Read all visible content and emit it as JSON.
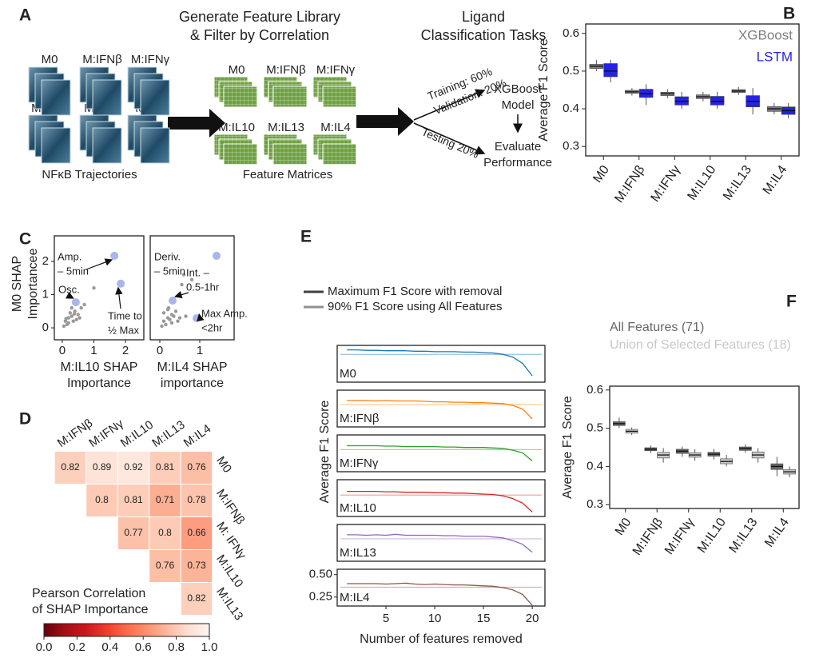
{
  "panel_labels": [
    "A",
    "B",
    "C",
    "D",
    "E",
    "F"
  ],
  "diagram": {
    "title": [
      "Generate Feature Library",
      "& Filter by Correlation"
    ],
    "trajectory_labels": [
      "M0",
      "M:IFNβ",
      "M:IFNγ",
      "M:IL10",
      "M:IL13",
      "M:IL4"
    ],
    "trajectory_caption": "NFκB Trajectories",
    "matrix_labels": [
      "M0",
      "M:IFNβ",
      "M:IFNγ",
      "M:IL10",
      "M:IL13",
      "M:IL4"
    ],
    "matrix_caption": "Feature Matrices",
    "task_title": [
      "Ligand",
      "Classification Tasks"
    ],
    "split_labels": [
      "Training: 60%",
      "Validation: 20%",
      "Testing 20%"
    ],
    "model": [
      "XGBoost",
      "Model"
    ],
    "evaluate": [
      "Evaluate",
      "Performance"
    ]
  },
  "chart_data": [
    {
      "type": "box",
      "ylabel": "Average F1 Score",
      "categories": [
        "M0",
        "M:IFNβ",
        "M:IFNγ",
        "M:IL10",
        "M:IL13",
        "M:IL4"
      ],
      "ylim": [
        0.275,
        0.625
      ],
      "yticks": [
        0.3,
        0.4,
        0.5,
        0.6
      ],
      "legend": "upper right",
      "series": [
        {
          "name": "XGBoost",
          "color": "#7f7f7f",
          "values": [
            {
              "min": 0.5,
              "q1": 0.507,
              "median": 0.513,
              "q3": 0.518,
              "max": 0.53
            },
            {
              "min": 0.435,
              "q1": 0.441,
              "median": 0.445,
              "q3": 0.449,
              "max": 0.455
            },
            {
              "min": 0.428,
              "q1": 0.435,
              "median": 0.44,
              "q3": 0.444,
              "max": 0.452
            },
            {
              "min": 0.42,
              "q1": 0.427,
              "median": 0.432,
              "q3": 0.437,
              "max": 0.445
            },
            {
              "min": 0.437,
              "q1": 0.443,
              "median": 0.447,
              "q3": 0.451,
              "max": 0.458
            },
            {
              "min": 0.385,
              "q1": 0.393,
              "median": 0.4,
              "q3": 0.406,
              "max": 0.415
            }
          ]
        },
        {
          "name": "LSTM",
          "color": "#2323e0",
          "values": [
            {
              "min": 0.47,
              "q1": 0.485,
              "median": 0.5,
              "q3": 0.52,
              "max": 0.53
            },
            {
              "min": 0.41,
              "q1": 0.43,
              "median": 0.44,
              "q3": 0.452,
              "max": 0.465
            },
            {
              "min": 0.4,
              "q1": 0.41,
              "median": 0.42,
              "q3": 0.432,
              "max": 0.445
            },
            {
              "min": 0.4,
              "q1": 0.41,
              "median": 0.42,
              "q3": 0.433,
              "max": 0.445
            },
            {
              "min": 0.385,
              "q1": 0.405,
              "median": 0.42,
              "q3": 0.435,
              "max": 0.455
            },
            {
              "min": 0.375,
              "q1": 0.385,
              "median": 0.395,
              "q3": 0.405,
              "max": 0.415
            }
          ]
        }
      ]
    },
    {
      "type": "scatter",
      "ylabel": [
        "M0 SHAP",
        "Importancee"
      ],
      "xlabel": [
        "M:IL10 SHAP",
        "Importance"
      ],
      "xlim": [
        -0.25,
        2.58
      ],
      "ylim": [
        -0.36,
        2.77
      ],
      "xticks": [
        0,
        1,
        2
      ],
      "yticks": [
        0,
        1,
        2
      ],
      "color": "#999999",
      "x": [
        0.1,
        0.2,
        0.3,
        0.15,
        0.4,
        0.25,
        0.5,
        0.35,
        0.05,
        0.6,
        0.45,
        0.2,
        1.0,
        0.7,
        0.55,
        0.3,
        0.12,
        0.38
      ],
      "y": [
        0.2,
        0.3,
        0.35,
        0.1,
        0.5,
        0.45,
        0.4,
        0.2,
        0.05,
        0.6,
        0.25,
        0.15,
        1.2,
        0.7,
        0.3,
        0.6,
        0.28,
        0.42
      ],
      "highlight": {
        "color": "#aab6ea",
        "x": [
          1.65,
          0.43,
          1.85
        ],
        "y": [
          2.17,
          0.77,
          1.33
        ],
        "annotations": [
          [
            "Amp.",
            "– 5min"
          ],
          [
            "Osc."
          ],
          [
            "Time to",
            "½ Max"
          ]
        ]
      }
    },
    {
      "type": "scatter",
      "xlabel": [
        "M:IL4 SHAP",
        "importance"
      ],
      "xlim": [
        -0.24,
        1.86
      ],
      "ylim": [
        -0.36,
        2.77
      ],
      "xticks": [
        0,
        1
      ],
      "color": "#999999",
      "x": [
        0.1,
        0.2,
        0.15,
        0.3,
        0.25,
        0.4,
        0.05,
        0.35,
        0.5,
        0.2,
        0.45,
        0.3,
        0.6,
        0.1,
        0.55,
        0.8,
        0.22,
        0.65
      ],
      "y": [
        0.2,
        0.3,
        0.1,
        0.4,
        0.25,
        0.5,
        0.05,
        0.35,
        0.3,
        0.55,
        0.2,
        0.15,
        1.6,
        0.45,
        1.3,
        1.45,
        0.6,
        0.35
      ],
      "highlight": {
        "color": "#aab6ea",
        "x": [
          1.42,
          0.32,
          0.92
        ],
        "y": [
          2.17,
          0.82,
          0.29
        ],
        "annotations": [
          [
            "Deriv.",
            "– 5min"
          ],
          [
            "Int. –",
            "0.5-1hr"
          ],
          [
            "Max Amp.",
            "<2hr"
          ]
        ]
      }
    },
    {
      "type": "heatmap",
      "columns": [
        "M:IFNβ",
        "M:IFNγ",
        "M:IL10",
        "M:IL13",
        "M:IL4"
      ],
      "rows": [
        "M0",
        "M:IFNβ",
        "M: IFNγ",
        "M:IL10",
        "M:IL13"
      ],
      "values": [
        [
          0.82,
          0.89,
          0.92,
          0.81,
          0.76
        ],
        [
          null,
          0.8,
          0.81,
          0.71,
          0.78
        ],
        [
          null,
          null,
          0.77,
          0.8,
          0.66
        ],
        [
          null,
          null,
          null,
          0.76,
          0.73
        ],
        [
          null,
          null,
          null,
          null,
          0.82
        ]
      ],
      "colormap": "Reds_r",
      "clim": [
        0,
        1
      ],
      "colorbar_label": [
        "Pearson Correlation",
        "of SHAP Importance"
      ],
      "colorbar_ticks": [
        {
          "value": 0,
          "label": "0.0"
        },
        0.2,
        0.4,
        0.6,
        0.8,
        {
          "value": 1,
          "label": "1.0"
        }
      ]
    },
    {
      "type": "line_panels",
      "ylabel": "Average F1 Score",
      "xlabel": "Number of features removed",
      "legend_entries": [
        {
          "name": "Maximum F1 Score with removal",
          "color": "#404040"
        },
        {
          "name": "90% F1 Score using All Features",
          "color": "#909090"
        }
      ],
      "x": [
        1,
        2,
        3,
        4,
        5,
        6,
        7,
        8,
        9,
        10,
        11,
        12,
        13,
        14,
        15,
        16,
        17,
        18,
        19,
        20
      ],
      "xlim": [
        0,
        21.3
      ],
      "xticks": [
        5,
        10,
        15,
        20
      ],
      "ylim": [
        0.15,
        0.56
      ],
      "yticks": [
        {
          "value": 0.5,
          "label": "0.50"
        },
        {
          "value": 0.25,
          "label": "0.25"
        }
      ],
      "series": [
        {
          "name": "M0",
          "color": "#1f77b4",
          "threshold": 0.46,
          "values": [
            0.51,
            0.51,
            0.505,
            0.505,
            0.5,
            0.5,
            0.5,
            0.495,
            0.495,
            0.49,
            0.49,
            0.49,
            0.485,
            0.485,
            0.48,
            0.475,
            0.46,
            0.43,
            0.36,
            0.22
          ]
        },
        {
          "name": "M:IFNβ",
          "color": "#ff7f0e",
          "threshold": 0.4,
          "values": [
            0.445,
            0.445,
            0.445,
            0.44,
            0.445,
            0.44,
            0.44,
            0.44,
            0.435,
            0.43,
            0.43,
            0.425,
            0.425,
            0.42,
            0.42,
            0.415,
            0.41,
            0.39,
            0.35,
            0.24
          ]
        },
        {
          "name": "M:IFNγ",
          "color": "#2ca02c",
          "threshold": 0.396,
          "values": [
            0.44,
            0.44,
            0.44,
            0.44,
            0.435,
            0.435,
            0.43,
            0.43,
            0.43,
            0.43,
            0.425,
            0.425,
            0.42,
            0.42,
            0.42,
            0.415,
            0.41,
            0.39,
            0.36,
            0.27
          ]
        },
        {
          "name": "M:IL10",
          "color": "#d62728",
          "threshold": 0.389,
          "values": [
            0.43,
            0.43,
            0.43,
            0.43,
            0.425,
            0.425,
            0.42,
            0.42,
            0.42,
            0.415,
            0.415,
            0.41,
            0.41,
            0.405,
            0.4,
            0.395,
            0.38,
            0.35,
            0.3,
            0.2
          ]
        },
        {
          "name": "M:IL13",
          "color": "#9467bd",
          "threshold": 0.4,
          "values": [
            0.445,
            0.445,
            0.44,
            0.445,
            0.44,
            0.45,
            0.44,
            0.44,
            0.44,
            0.44,
            0.435,
            0.435,
            0.43,
            0.43,
            0.43,
            0.42,
            0.41,
            0.38,
            0.34,
            0.25
          ]
        },
        {
          "name": "M:IL4",
          "color": "#8c564b",
          "threshold": 0.36,
          "values": [
            0.4,
            0.4,
            0.4,
            0.4,
            0.395,
            0.4,
            0.405,
            0.395,
            0.39,
            0.395,
            0.39,
            0.385,
            0.385,
            0.38,
            0.375,
            0.37,
            0.355,
            0.33,
            0.28,
            0.16
          ]
        }
      ]
    },
    {
      "type": "box",
      "ylabel": "Average F1 Score",
      "categories": [
        "M0",
        "M:IFNβ",
        "M:IFNγ",
        "M:IL10",
        "M:IL13",
        "M:IL4"
      ],
      "ylim": [
        0.29,
        0.61
      ],
      "yticks": [
        0.3,
        0.4,
        0.5,
        0.6
      ],
      "legend": "above",
      "series": [
        {
          "name": "All Features (71)",
          "color": "#666666",
          "values": [
            {
              "min": 0.5,
              "q1": 0.507,
              "median": 0.512,
              "q3": 0.517,
              "max": 0.528
            },
            {
              "min": 0.435,
              "q1": 0.441,
              "median": 0.445,
              "q3": 0.449,
              "max": 0.455
            },
            {
              "min": 0.425,
              "q1": 0.434,
              "median": 0.44,
              "q3": 0.445,
              "max": 0.452
            },
            {
              "min": 0.418,
              "q1": 0.427,
              "median": 0.432,
              "q3": 0.437,
              "max": 0.446
            },
            {
              "min": 0.436,
              "q1": 0.442,
              "median": 0.447,
              "q3": 0.451,
              "max": 0.458
            },
            {
              "min": 0.375,
              "q1": 0.392,
              "median": 0.4,
              "q3": 0.407,
              "max": 0.425
            }
          ]
        },
        {
          "name": "Union of Selected Features (18)",
          "color": "#c8c8c8",
          "values": [
            {
              "min": 0.482,
              "q1": 0.487,
              "median": 0.492,
              "q3": 0.497,
              "max": 0.502
            },
            {
              "min": 0.41,
              "q1": 0.422,
              "median": 0.43,
              "q3": 0.437,
              "max": 0.448
            },
            {
              "min": 0.415,
              "q1": 0.424,
              "median": 0.43,
              "q3": 0.436,
              "max": 0.445
            },
            {
              "min": 0.4,
              "q1": 0.407,
              "median": 0.413,
              "q3": 0.42,
              "max": 0.43
            },
            {
              "min": 0.41,
              "q1": 0.422,
              "median": 0.43,
              "q3": 0.438,
              "max": 0.448
            },
            {
              "min": 0.372,
              "q1": 0.38,
              "median": 0.386,
              "q3": 0.392,
              "max": 0.4
            }
          ]
        }
      ]
    }
  ]
}
